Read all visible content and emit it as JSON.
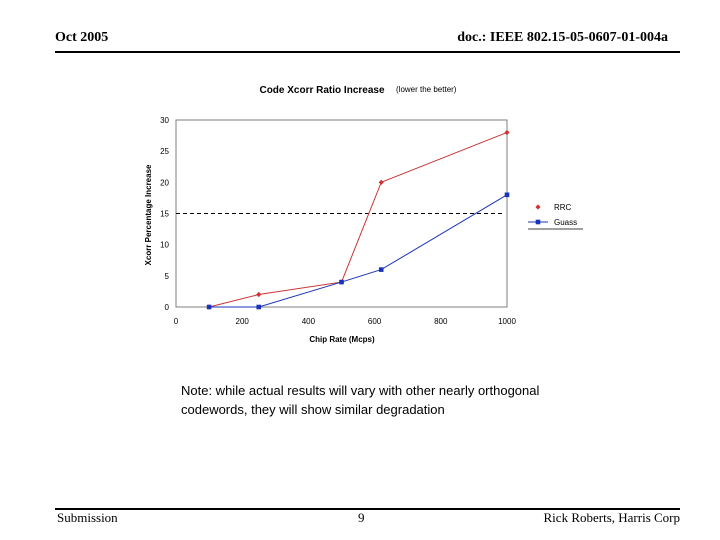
{
  "header": {
    "left": "Oct 2005",
    "right": "doc.: IEEE 802.15-05-0607-01-004a"
  },
  "footer": {
    "left": "Submission",
    "center": "9",
    "right": "Rick Roberts, Harris Corp"
  },
  "note": {
    "line1": "Note: while actual results will vary with other nearly orthogonal",
    "line2": "codewords, they will show similar degradation"
  },
  "chart_data": {
    "type": "line",
    "title": "Code Xcorr Ratio Increase",
    "subtitle": "(lower the better)",
    "xlabel": "Chip Rate (Mcps)",
    "ylabel": "Xcorr Percentage Increase",
    "xlim": [
      0,
      1000
    ],
    "ylim": [
      0,
      30
    ],
    "xticks": [
      0,
      200,
      400,
      600,
      800,
      1000
    ],
    "yticks": [
      0,
      5,
      10,
      15,
      20,
      25,
      30
    ],
    "grid": false,
    "legend_position": "right",
    "reference_line": {
      "y": 15,
      "style": "dashed"
    },
    "series": [
      {
        "name": "RRC",
        "color": "#cc3333",
        "marker": "diamond",
        "x": [
          100,
          250,
          500,
          620,
          1000
        ],
        "y": [
          0,
          2,
          4,
          20,
          28
        ]
      },
      {
        "name": "Guass",
        "color": "#1a33bb",
        "marker": "square",
        "x": [
          100,
          250,
          500,
          620,
          1000
        ],
        "y": [
          0,
          0,
          4,
          6,
          18
        ]
      }
    ]
  }
}
